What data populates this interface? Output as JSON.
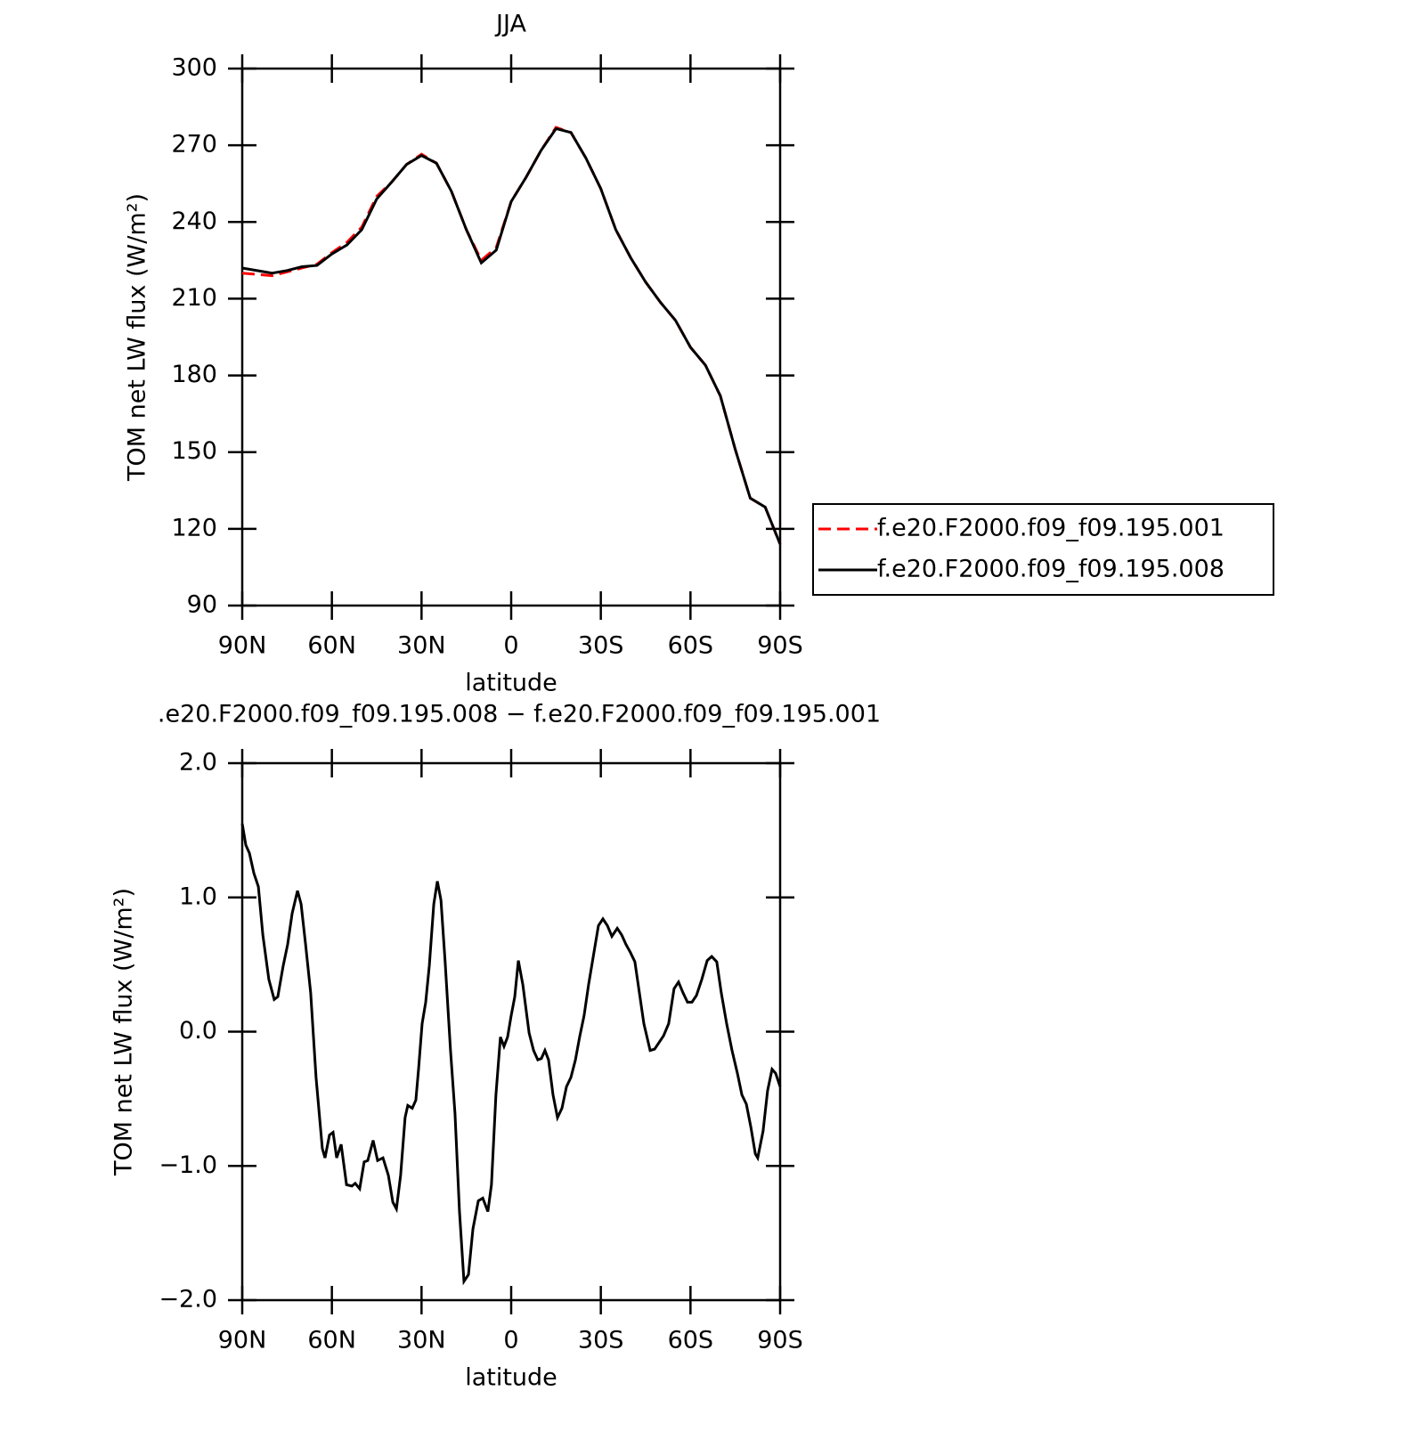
{
  "chart_data": [
    {
      "type": "line",
      "title": "JJA",
      "ylabel": "TOM net LW flux (W/m²)",
      "xlabel": "latitude",
      "xlim": [
        90,
        -90
      ],
      "ylim": [
        90,
        300
      ],
      "xticks": [
        {
          "value": 90,
          "label": "90N"
        },
        {
          "value": 60,
          "label": "60N"
        },
        {
          "value": 30,
          "label": "30N"
        },
        0,
        {
          "value": -30,
          "label": "30S"
        },
        {
          "value": -60,
          "label": "60S"
        },
        {
          "value": -90,
          "label": "90S"
        }
      ],
      "yticks": [
        90,
        120,
        150,
        180,
        210,
        240,
        270,
        300
      ],
      "grid": false,
      "legend": "right",
      "x": [
        90,
        85,
        80,
        75,
        70,
        65,
        60,
        55,
        50,
        45,
        40,
        35,
        30,
        25,
        20,
        15,
        10,
        5,
        0,
        -5,
        -10,
        -15,
        -20,
        -25,
        -30,
        -35,
        -40,
        -45,
        -50,
        -55,
        -60,
        -65,
        -70,
        -75,
        -80,
        -85,
        -90
      ],
      "series": [
        {
          "name": "f.e20.F2000.f09_f09.195.001",
          "color": "#ff0000",
          "style": "dashed",
          "values": [
            220,
            219.5,
            219,
            220.5,
            222,
            223.5,
            228,
            232,
            238,
            250,
            255.6,
            262.5,
            266.5,
            263,
            252,
            237,
            225,
            230,
            248,
            257.5,
            268,
            277,
            275,
            265,
            253,
            237,
            226,
            216.5,
            208.5,
            201.5,
            191,
            184,
            172,
            151,
            132,
            128.5,
            114
          ]
        },
        {
          "name": "f.e20.F2000.f09_f09.195.008",
          "color": "#000000",
          "style": "solid",
          "values": [
            222,
            221,
            220,
            221,
            222.5,
            223,
            227.5,
            231,
            237,
            249,
            255.6,
            262.5,
            266,
            263,
            252,
            237,
            224,
            229,
            248,
            257.5,
            268,
            276.5,
            275,
            265,
            253,
            237,
            226,
            216.5,
            208.5,
            201.5,
            191,
            184,
            172,
            151,
            132,
            128.5,
            114
          ]
        }
      ]
    },
    {
      "type": "line",
      "title": ".e20.F2000.f09_f09.195.008 − f.e20.F2000.f09_f09.195.001",
      "ylabel": "TOM net LW flux (W/m²)",
      "xlabel": "latitude",
      "xlim": [
        90,
        -90
      ],
      "ylim": [
        -2,
        2
      ],
      "xticks": [
        {
          "value": 90,
          "label": "90N"
        },
        {
          "value": 60,
          "label": "60N"
        },
        {
          "value": 30,
          "label": "30N"
        },
        0,
        {
          "value": -30,
          "label": "30S"
        },
        {
          "value": -60,
          "label": "60S"
        },
        {
          "value": -90,
          "label": "90S"
        }
      ],
      "yticks": [
        {
          "value": -2,
          "label": "−2.0"
        },
        {
          "value": -1,
          "label": "−1.0"
        },
        {
          "value": 0,
          "label": "0.0"
        },
        {
          "value": 1,
          "label": "1.0"
        },
        {
          "value": 2,
          "label": "2.0"
        }
      ],
      "grid": false,
      "x": [
        90,
        88.8,
        87.6,
        86.1,
        84.6,
        83.1,
        81.1,
        79.3,
        78.1,
        76.3,
        74.8,
        73.3,
        71.5,
        70.3,
        68.8,
        67.1,
        65.3,
        63.2,
        62.3,
        60.8,
        59.6,
        58.4,
        56.9,
        55.1,
        53.3,
        52.2,
        50.7,
        49.2,
        48.0,
        46.2,
        44.7,
        42.9,
        41.1,
        39.6,
        38.4,
        37.0,
        35.5,
        34.6,
        33.1,
        31.9,
        31.0,
        29.8,
        28.6,
        27.4,
        25.9,
        24.7,
        23.5,
        22.1,
        20.3,
        18.8,
        17.3,
        15.8,
        14.3,
        12.8,
        11.0,
        9.5,
        7.8,
        6.6,
        5.1,
        3.6,
        2.4,
        1.2,
        0,
        -1.2,
        -2.4,
        -3.9,
        -6.0,
        -7.5,
        -8.9,
        -10.1,
        -11.3,
        -12.5,
        -14.0,
        -15.5,
        -17.0,
        -18.5,
        -20.0,
        -21.5,
        -22.9,
        -24.4,
        -25.9,
        -27.7,
        -29.2,
        -30.7,
        -32.2,
        -33.7,
        -35.5,
        -37.0,
        -38.4,
        -39.9,
        -41.4,
        -42.9,
        -44.4,
        -46.5,
        -48.0,
        -49.5,
        -51.0,
        -52.7,
        -54.5,
        -56.0,
        -57.5,
        -59.0,
        -60.5,
        -62.0,
        -63.8,
        -65.6,
        -67.1,
        -68.8,
        -70.3,
        -72.1,
        -73.9,
        -75.7,
        -77.2,
        -78.7,
        -80.2,
        -81.7,
        -82.5,
        -84.3,
        -85.8,
        -87.3,
        -88.5,
        -90
      ],
      "color": "#000000",
      "values": [
        1.55,
        1.39,
        1.33,
        1.18,
        1.08,
        0.72,
        0.39,
        0.24,
        0.26,
        0.49,
        0.65,
        0.88,
        1.05,
        0.95,
        0.65,
        0.29,
        -0.34,
        -0.87,
        -0.94,
        -0.77,
        -0.75,
        -0.94,
        -0.84,
        -1.14,
        -1.15,
        -1.13,
        -1.17,
        -0.97,
        -0.96,
        -0.81,
        -0.96,
        -0.94,
        -1.07,
        -1.27,
        -1.32,
        -1.07,
        -0.64,
        -0.55,
        -0.57,
        -0.51,
        -0.28,
        0.06,
        0.22,
        0.49,
        0.95,
        1.12,
        0.98,
        0.52,
        -0.14,
        -0.61,
        -1.34,
        -1.86,
        -1.81,
        -1.47,
        -1.26,
        -1.24,
        -1.34,
        -1.14,
        -0.47,
        -0.04,
        -0.11,
        -0.04,
        0.12,
        0.26,
        0.53,
        0.35,
        -0.01,
        -0.14,
        -0.21,
        -0.2,
        -0.14,
        -0.21,
        -0.47,
        -0.64,
        -0.57,
        -0.41,
        -0.34,
        -0.21,
        -0.04,
        0.12,
        0.35,
        0.59,
        0.79,
        0.84,
        0.79,
        0.71,
        0.77,
        0.72,
        0.65,
        0.59,
        0.52,
        0.29,
        0.06,
        -0.14,
        -0.13,
        -0.08,
        -0.03,
        0.06,
        0.32,
        0.37,
        0.29,
        0.22,
        0.22,
        0.27,
        0.39,
        0.53,
        0.56,
        0.52,
        0.29,
        0.06,
        -0.14,
        -0.31,
        -0.47,
        -0.54,
        -0.71,
        -0.91,
        -0.94,
        -0.74,
        -0.44,
        -0.28,
        -0.31,
        -0.41
      ]
    }
  ]
}
